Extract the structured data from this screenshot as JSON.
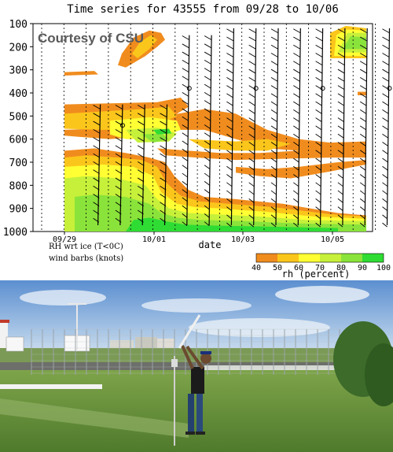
{
  "chart_data": {
    "type": "heatmap",
    "title": "Time series for 43555 from 09/28 to 10/06",
    "watermark": "Courtesy of CSU",
    "xlabel": "date",
    "ylabel": "",
    "x_ticks": [
      "09/29",
      "10/01",
      "10/03",
      "10/05"
    ],
    "y_ticks": [
      100,
      200,
      300,
      400,
      500,
      600,
      700,
      800,
      900,
      1000
    ],
    "ylim": [
      1000,
      100
    ],
    "y_units": "pressure (hPa), inverted axis",
    "notes": [
      "RH wrt ice (T<0C)",
      "wind barbs (knots)"
    ],
    "colorbar": {
      "label": "rh (percent)",
      "ticks": [
        40,
        50,
        60,
        70,
        80,
        90,
        100
      ],
      "colors": [
        "#f08c1e",
        "#fbc61b",
        "#ffff33",
        "#c6f03a",
        "#8ae33a",
        "#2fdc33"
      ]
    },
    "soundings_per_day": 2,
    "rh_regions": [
      {
        "description": "moist surface layer",
        "pressure_hpa": [
          1000,
          780
        ],
        "rh_percent": "80-100"
      },
      {
        "description": "mid-level moist band",
        "pressure_hpa": [
          560,
          420
        ],
        "rh_percent": "60-90"
      },
      {
        "description": "elevated layer around 650 hPa",
        "pressure_hpa": [
          700,
          620
        ],
        "rh_percent": "40-60"
      },
      {
        "description": "upper layer around 150 hPa near 10/05",
        "pressure_hpa": [
          240,
          120
        ],
        "rh_percent": "70-100"
      }
    ]
  },
  "photo": {
    "subject": "meteorologist launching radiosonde at a weather station"
  }
}
